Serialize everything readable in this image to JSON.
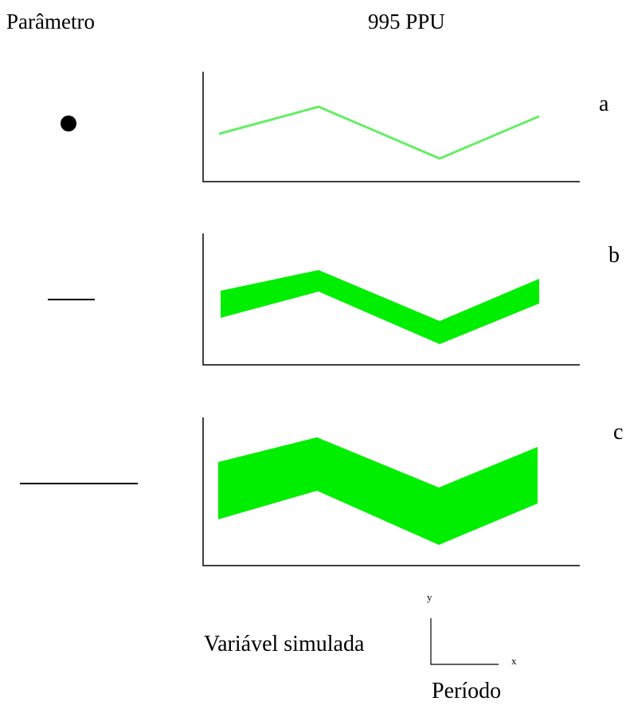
{
  "header": {
    "parameter_label": "Parâmetro",
    "ppu_label": "995 PPU"
  },
  "panels": [
    {
      "label": "a",
      "symbol": "point",
      "band": "line"
    },
    {
      "label": "b",
      "symbol": "short-interval",
      "band": "narrow"
    },
    {
      "label": "c",
      "symbol": "long-interval",
      "band": "wide"
    }
  ],
  "legend": {
    "variable_label": "Variável simulada",
    "period_label": "Período",
    "y_axis": "y",
    "x_axis": "x"
  },
  "colors": {
    "line_green": "#66ee66",
    "band_green": "#00ee00",
    "ink": "#000000"
  }
}
